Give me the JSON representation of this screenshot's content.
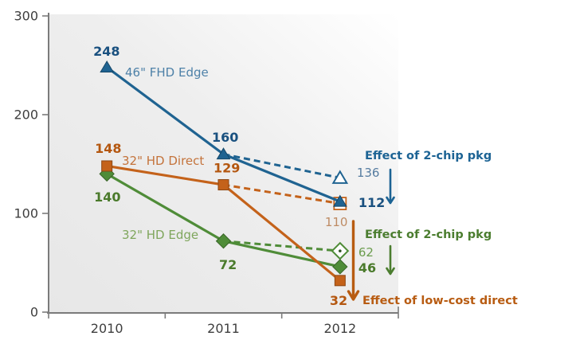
{
  "chart_data": {
    "type": "line",
    "title": "",
    "xlabel": "",
    "ylabel": "",
    "categories": [
      "2010",
      "2011",
      "2012"
    ],
    "ylim": [
      0,
      300
    ],
    "yticks": [
      0,
      100,
      200,
      300
    ],
    "grid": false,
    "legend_position": "inline-next-to-lines",
    "plot_background": {
      "from": "#e7e7e7",
      "mid": "#eeeeee",
      "to": "#ffffff"
    },
    "axis": {
      "line_color": "#7b7b7b",
      "tick_label_color": "#3e3e3e"
    },
    "series": [
      {
        "name": "46\" FHD Edge",
        "marker": "triangle",
        "line_style": "solid",
        "line_color": "#1F6391",
        "value_label_color": "#19507F",
        "name_label_color": "#4E81A8",
        "values": [
          248,
          160,
          112
        ],
        "alt_branch": {
          "from_category": "2011",
          "to_category": "2012",
          "value": 136,
          "style": "dashed",
          "marker": "open-triangle",
          "label_color": "#567CA0"
        }
      },
      {
        "name": "32\" HD Direct",
        "marker": "square",
        "line_style": "solid",
        "line_color": "#C4621A",
        "value_label_color": "#B45710",
        "name_label_color": "#C4733B",
        "values": [
          148,
          129,
          32
        ],
        "alt_branch": {
          "from_category": "2011",
          "to_category": "2012",
          "value": 110,
          "style": "dashed",
          "marker": "open-square",
          "label_color": "#BE8B64"
        }
      },
      {
        "name": "32\" HD Edge",
        "marker": "diamond",
        "line_style": "solid",
        "line_color": "#4F8C38",
        "value_label_color": "#4A7A2B",
        "name_label_color": "#7FA65C",
        "values": [
          140,
          72,
          46
        ],
        "alt_branch": {
          "from_category": "2011",
          "to_category": "2012",
          "value": 62,
          "style": "dashed",
          "marker": "open-diamond-dot",
          "label_color": "#6B9C4D"
        }
      }
    ],
    "annotations": [
      {
        "text": "Effect of 2-chip pkg",
        "color": "#1C6394",
        "arrow": "down",
        "refers_to": "46\" FHD Edge",
        "from_value": 136,
        "to_value": 112
      },
      {
        "text": "Effect of 2-chip pkg",
        "color": "#4B7D2F",
        "arrow": "down",
        "refers_to": "32\" HD Edge",
        "from_value": 62,
        "to_value": 46
      },
      {
        "text": "Effect of low-cost direct",
        "color": "#B85C12",
        "arrow": "down",
        "refers_to": "32\" HD Direct",
        "from_value": 110,
        "to_value": 32
      }
    ]
  }
}
